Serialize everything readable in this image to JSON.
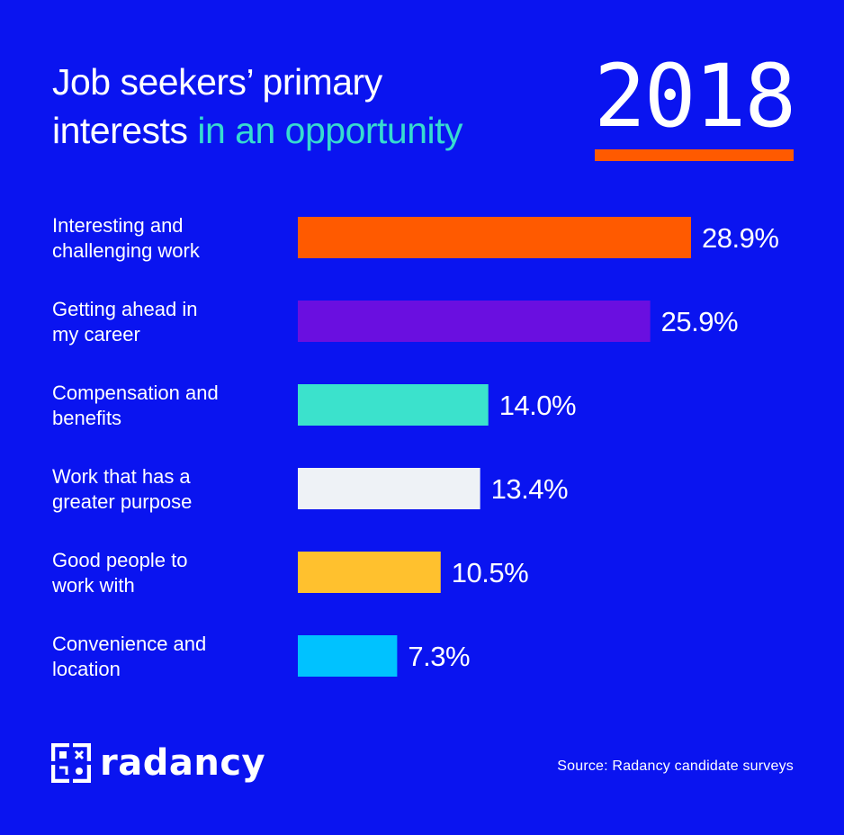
{
  "header": {
    "title_white": "Job seekers’ primary",
    "title_white_2": "interests",
    "title_accent": "in an opportunity",
    "year": "2018"
  },
  "colors": {
    "background": "#0a14f0",
    "accent_text": "#37dbd0",
    "year_rule": "#ff5a00"
  },
  "chart_data": {
    "type": "bar",
    "orientation": "horizontal",
    "categories": [
      [
        "Interesting and",
        "challenging work"
      ],
      [
        "Getting ahead in",
        "my career"
      ],
      [
        "Compensation and",
        "benefits"
      ],
      [
        "Work that has a",
        "greater purpose"
      ],
      [
        "Good people to",
        "work with"
      ],
      [
        "Convenience and",
        "location"
      ]
    ],
    "values": [
      28.9,
      25.9,
      14.0,
      13.4,
      10.5,
      7.3
    ],
    "value_labels": [
      "28.9%",
      "25.9%",
      "14.0%",
      "13.4%",
      "10.5%",
      "7.3%"
    ],
    "bar_colors": [
      "#ff5a00",
      "#6a0fe0",
      "#3be2cc",
      "#eef2f6",
      "#ffc12e",
      "#00c2ff"
    ],
    "grid": false,
    "legend": "none"
  },
  "footer": {
    "logo_icon": "radancy-logo-icon",
    "brand": "radancy",
    "source": "Source: Radancy candidate surveys"
  }
}
